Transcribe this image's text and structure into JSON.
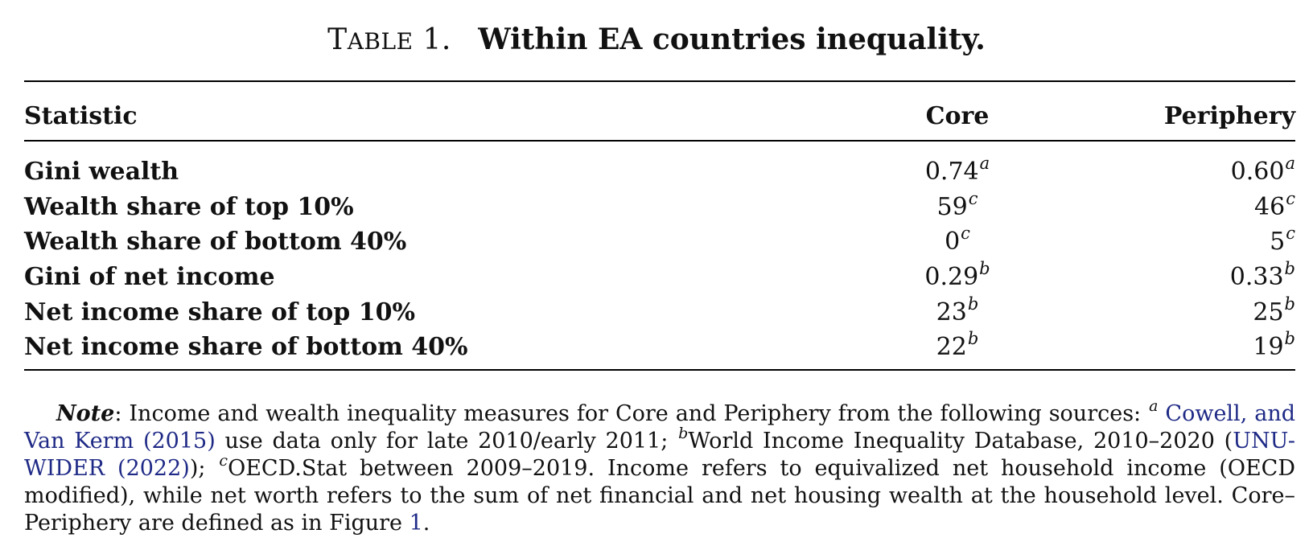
{
  "caption": {
    "label": "TABLE 1.",
    "title": "Within EA countries inequality."
  },
  "table": {
    "headers": {
      "statistic": "Statistic",
      "core": "Core",
      "periphery": "Periphery"
    },
    "rows": [
      {
        "label": "Gini wealth",
        "core": "0.74",
        "core_note": "a",
        "periphery": "0.60",
        "periphery_note": "a"
      },
      {
        "label": "Wealth share of top 10%",
        "core": "59",
        "core_note": "c",
        "periphery": "46",
        "periphery_note": "c"
      },
      {
        "label": "Wealth share of bottom 40%",
        "core": "0",
        "core_note": "c",
        "periphery": "5",
        "periphery_note": "c"
      },
      {
        "label": "Gini of net income",
        "core": "0.29",
        "core_note": "b",
        "periphery": "0.33",
        "periphery_note": "b"
      },
      {
        "label": "Net income share of top 10%",
        "core": "23",
        "core_note": "b",
        "periphery": "25",
        "periphery_note": "b"
      },
      {
        "label": "Net income share of bottom 40%",
        "core": "22",
        "core_note": "b",
        "periphery": "19",
        "periphery_note": "b"
      }
    ]
  },
  "note": {
    "label": "Note",
    "intro": ":  Income and wealth inequality measures for Core and Periphery from the following sources: ",
    "mark_a": "a",
    "cite_a": "Cowell, and Van Kerm",
    "cite_a_year": "(2015)",
    "text_a": " use data only for late 2010/early 2011; ",
    "mark_b": "b",
    "text_b": "World Income Inequality Database, 2010–2020 (",
    "cite_b": "UNU-WIDER",
    "cite_b_year": "(2022)",
    "text_b_end": ");",
    "mark_c": "c",
    "text_c": "OECD.Stat between 2009–2019. Income refers to equivalized net household income (OECD modified), while net worth refers to the sum of net financial and net housing wealth at the household level. Core–Periphery are defined as in Figure ",
    "figure_ref": "1",
    "text_end": "."
  }
}
